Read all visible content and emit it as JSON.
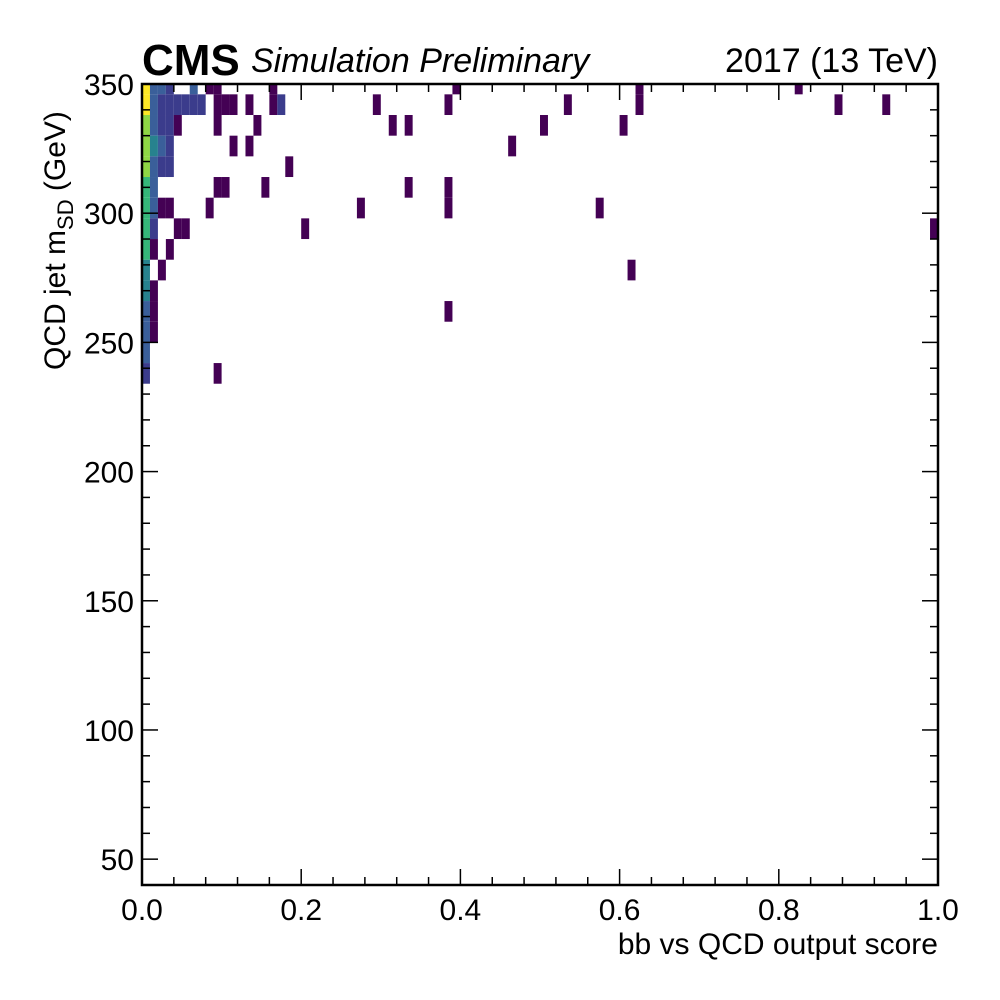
{
  "chart_data": {
    "type": "heatmap",
    "experiment": "CMS",
    "extra_text": "Simulation Preliminary",
    "lumi_text": "2017 (13 TeV)",
    "xlabel": "bb vs QCD output score",
    "ylabel_main": "QCD jet m",
    "ylabel_sub": "SD",
    "ylabel_unit": " (GeV)",
    "xlim": [
      0.0,
      1.0
    ],
    "ylim": [
      40,
      350
    ],
    "x_ticks": [
      "0.0",
      "0.2",
      "0.4",
      "0.6",
      "0.8",
      "1.0"
    ],
    "y_ticks": [
      "50",
      "100",
      "150",
      "200",
      "250",
      "300",
      "350"
    ],
    "y_tick_values": [
      50,
      100,
      150,
      200,
      250,
      300,
      350
    ],
    "x_tick_values": [
      0.0,
      0.2,
      0.4,
      0.6,
      0.8,
      1.0
    ],
    "x_bin_width": 0.01,
    "y_bin_width": 8,
    "colormap": "viridis",
    "colors": {
      "purple": "#440154",
      "indigo": "#3b3c8c",
      "blue": "#3a5f9a",
      "teal": "#27828e",
      "green": "#35b779",
      "lime": "#8fd744",
      "yellow": "#fde725"
    },
    "bins": [
      [
        0.0,
        346,
        "yellow"
      ],
      [
        0.0,
        338,
        "yellow"
      ],
      [
        0.0,
        330,
        "lime"
      ],
      [
        0.0,
        322,
        "lime"
      ],
      [
        0.0,
        314,
        "lime"
      ],
      [
        0.0,
        306,
        "green"
      ],
      [
        0.0,
        298,
        "green"
      ],
      [
        0.0,
        290,
        "green"
      ],
      [
        0.0,
        282,
        "green"
      ],
      [
        0.0,
        274,
        "teal"
      ],
      [
        0.0,
        266,
        "teal"
      ],
      [
        0.0,
        258,
        "blue"
      ],
      [
        0.0,
        250,
        "blue"
      ],
      [
        0.0,
        242,
        "blue"
      ],
      [
        0.0,
        234,
        "indigo"
      ],
      [
        0.01,
        346,
        "blue"
      ],
      [
        0.01,
        338,
        "blue"
      ],
      [
        0.01,
        330,
        "blue"
      ],
      [
        0.01,
        322,
        "teal"
      ],
      [
        0.01,
        314,
        "blue"
      ],
      [
        0.01,
        306,
        "blue"
      ],
      [
        0.01,
        298,
        "blue"
      ],
      [
        0.01,
        290,
        "indigo"
      ],
      [
        0.01,
        282,
        "purple"
      ],
      [
        0.01,
        266,
        "purple"
      ],
      [
        0.01,
        258,
        "purple"
      ],
      [
        0.01,
        250,
        "purple"
      ],
      [
        0.02,
        346,
        "blue"
      ],
      [
        0.02,
        338,
        "indigo"
      ],
      [
        0.02,
        330,
        "indigo"
      ],
      [
        0.02,
        322,
        "blue"
      ],
      [
        0.02,
        314,
        "indigo"
      ],
      [
        0.02,
        298,
        "purple"
      ],
      [
        0.02,
        274,
        "purple"
      ],
      [
        0.03,
        346,
        "indigo"
      ],
      [
        0.03,
        338,
        "indigo"
      ],
      [
        0.03,
        330,
        "indigo"
      ],
      [
        0.03,
        322,
        "indigo"
      ],
      [
        0.03,
        314,
        "indigo"
      ],
      [
        0.03,
        298,
        "purple"
      ],
      [
        0.03,
        282,
        "purple"
      ],
      [
        0.04,
        338,
        "indigo"
      ],
      [
        0.04,
        330,
        "purple"
      ],
      [
        0.04,
        290,
        "purple"
      ],
      [
        0.05,
        338,
        "indigo"
      ],
      [
        0.05,
        290,
        "purple"
      ],
      [
        0.06,
        346,
        "blue"
      ],
      [
        0.06,
        338,
        "indigo"
      ],
      [
        0.07,
        338,
        "indigo"
      ],
      [
        0.08,
        346,
        "purple"
      ],
      [
        0.08,
        298,
        "purple"
      ],
      [
        0.09,
        346,
        "purple"
      ],
      [
        0.09,
        338,
        "purple"
      ],
      [
        0.09,
        306,
        "purple"
      ],
      [
        0.1,
        338,
        "purple"
      ],
      [
        0.1,
        306,
        "purple"
      ],
      [
        0.09,
        330,
        "purple"
      ],
      [
        0.09,
        234,
        "purple"
      ],
      [
        0.11,
        338,
        "purple"
      ],
      [
        0.11,
        322,
        "purple"
      ],
      [
        0.13,
        338,
        "purple"
      ],
      [
        0.13,
        322,
        "purple"
      ],
      [
        0.14,
        330,
        "purple"
      ],
      [
        0.15,
        306,
        "purple"
      ],
      [
        0.16,
        346,
        "purple"
      ],
      [
        0.16,
        338,
        "purple"
      ],
      [
        0.17,
        338,
        "indigo"
      ],
      [
        0.18,
        314,
        "purple"
      ],
      [
        0.2,
        290,
        "purple"
      ],
      [
        0.27,
        298,
        "purple"
      ],
      [
        0.29,
        338,
        "purple"
      ],
      [
        0.31,
        330,
        "purple"
      ],
      [
        0.33,
        330,
        "purple"
      ],
      [
        0.33,
        306,
        "purple"
      ],
      [
        0.38,
        338,
        "purple"
      ],
      [
        0.38,
        306,
        "purple"
      ],
      [
        0.38,
        298,
        "purple"
      ],
      [
        0.38,
        258,
        "purple"
      ],
      [
        0.39,
        346,
        "purple"
      ],
      [
        0.46,
        322,
        "purple"
      ],
      [
        0.5,
        330,
        "purple"
      ],
      [
        0.53,
        338,
        "purple"
      ],
      [
        0.57,
        298,
        "purple"
      ],
      [
        0.6,
        330,
        "purple"
      ],
      [
        0.61,
        274,
        "purple"
      ],
      [
        0.62,
        346,
        "purple"
      ],
      [
        0.62,
        338,
        "purple"
      ],
      [
        0.82,
        346,
        "purple"
      ],
      [
        0.87,
        338,
        "purple"
      ],
      [
        0.93,
        338,
        "purple"
      ],
      [
        0.99,
        290,
        "purple"
      ]
    ]
  }
}
